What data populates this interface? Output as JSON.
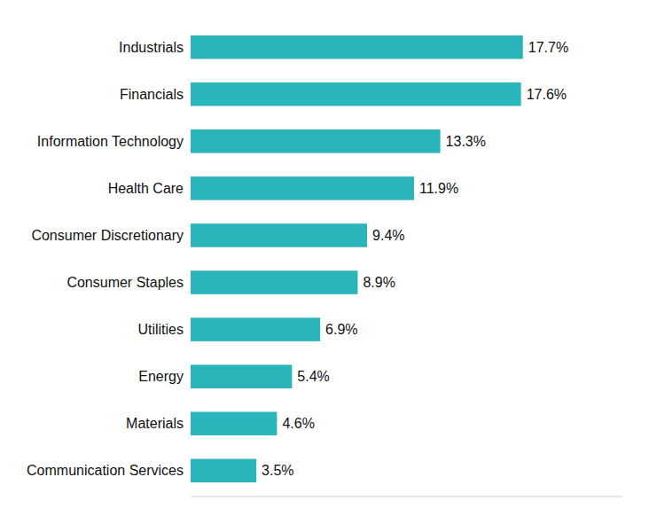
{
  "chart_data": {
    "type": "bar",
    "orientation": "horizontal",
    "categories": [
      "Communication Services",
      "Materials",
      "Energy",
      "Utilities",
      "Consumer Staples",
      "Consumer Discretionary",
      "Health Care",
      "Information Technology",
      "Financials",
      "Industrials"
    ],
    "values": [
      3.5,
      4.6,
      5.4,
      6.9,
      8.9,
      9.4,
      11.9,
      13.3,
      17.6,
      17.7
    ],
    "value_labels": [
      "3.5%",
      "4.6%",
      "5.4%",
      "6.9%",
      "8.9%",
      "9.4%",
      "11.9%",
      "13.3%",
      "17.6%",
      "17.7%"
    ],
    "color": "#2ab5bb",
    "xlim": [
      0,
      23
    ],
    "data_labels": true,
    "tick_labels": "y",
    "grid": false
  }
}
